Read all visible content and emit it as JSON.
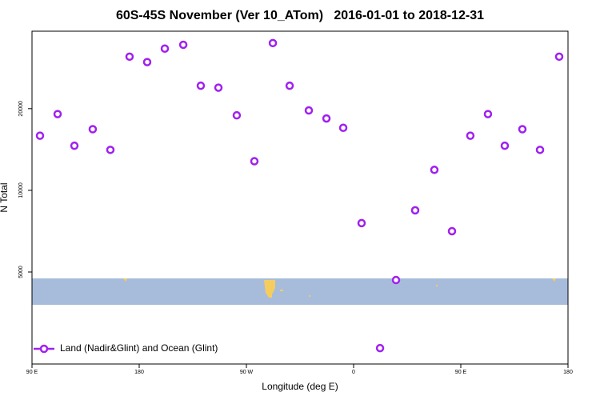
{
  "chart_data": {
    "type": "scatter",
    "title": "60S-45S November (Ver 10_ATom)   2016-01-01 to 2018-12-31",
    "x_label": "Longitude (deg E)",
    "y_label": "N Total",
    "xlim": [
      -270,
      180
    ],
    "xticks": [
      {
        "value": -270,
        "label": "90 E"
      },
      {
        "value": -180,
        "label": "180"
      },
      {
        "value": -90,
        "label": "90 W"
      },
      0,
      {
        "value": 90,
        "label": "90 E"
      },
      180
    ],
    "ylim": [
      2290,
      38600
    ],
    "y_log": true,
    "yticks": [
      5000,
      10000,
      20000
    ],
    "legend_position": "bottom-left",
    "series": [
      {
        "name": "Land (Nadir&Glint) and Ocean (Glint)",
        "color": "#a020f0",
        "x": [
          -263.3,
          -248.5,
          -234.4,
          -219,
          -204.2,
          -188.1,
          -173.3,
          -158.5,
          -143,
          -128.3,
          -113.5,
          -98.1,
          -83.3,
          -67.8,
          -53.7,
          -37.6,
          -22.8,
          -8.7,
          6.7,
          22.2,
          35.6,
          51.7,
          67.8,
          82.6,
          98,
          112.8,
          126.9,
          141.7,
          156.5,
          172.6
        ],
        "values": [
          15900,
          19100,
          14600,
          16800,
          14100,
          31100,
          29700,
          33300,
          34400,
          24300,
          23900,
          18900,
          12800,
          34900,
          24300,
          19700,
          18400,
          17000,
          7570,
          2620,
          4670,
          8440,
          11900,
          7070,
          15900,
          19100,
          14600,
          16800,
          14100,
          31100
        ]
      }
    ]
  }
}
